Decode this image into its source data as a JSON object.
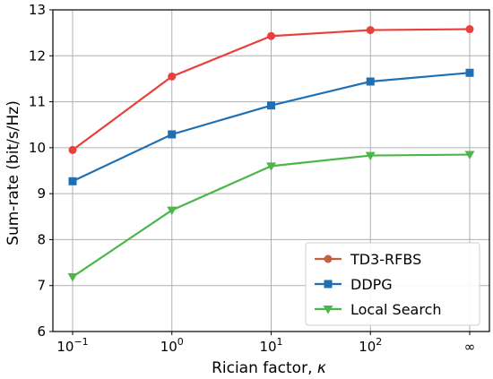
{
  "chart_data": {
    "type": "line",
    "title": "",
    "xlabel": "Rician factor, ",
    "xlabel_symbol": "κ",
    "ylabel": "Sum-rate (bit/s/Hz)",
    "x_tick_labels": [
      {
        "base": "10",
        "exp": "−1"
      },
      {
        "base": "10",
        "exp": "0"
      },
      {
        "base": "10",
        "exp": "1"
      },
      {
        "base": "10",
        "exp": "2"
      },
      {
        "base": "∞",
        "exp": ""
      }
    ],
    "ylim": [
      6,
      13
    ],
    "y_ticks": [
      6,
      7,
      8,
      9,
      10,
      11,
      12,
      13
    ],
    "grid": true,
    "legend_position": "lower-right",
    "series": [
      {
        "name": "TD3-RFBS",
        "color": "#e8413c",
        "marker": "circle",
        "legend_color": "#c0623c",
        "values": [
          9.95,
          11.55,
          12.43,
          12.56,
          12.58
        ]
      },
      {
        "name": "DDPG",
        "color": "#1f6fb4",
        "marker": "square",
        "legend_color": "#1f6fb4",
        "values": [
          9.27,
          10.29,
          10.92,
          11.44,
          11.63
        ]
      },
      {
        "name": "Local Search",
        "color": "#4cb749",
        "marker": "triangle-down",
        "legend_color": "#4cb749",
        "values": [
          7.19,
          8.64,
          9.6,
          9.83,
          9.85
        ]
      }
    ]
  }
}
